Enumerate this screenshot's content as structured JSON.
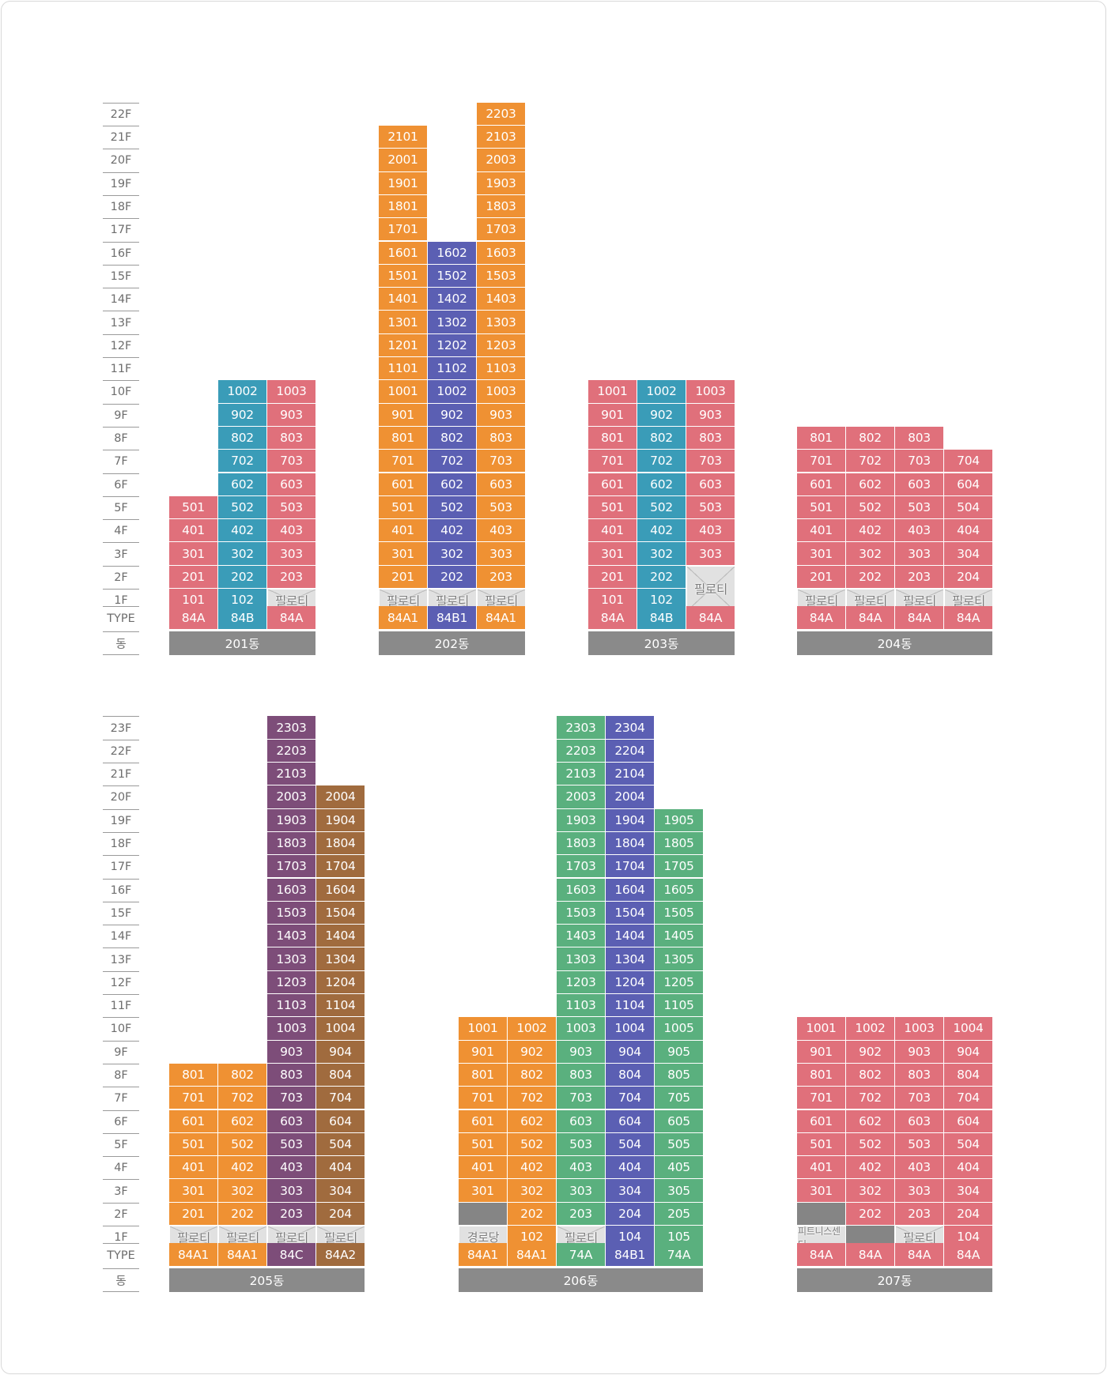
{
  "colors": {
    "pink": "#e0707b",
    "teal": "#3a9cb8",
    "orange": "#ef9133",
    "indigo": "#5b5fb3",
    "plum": "#7d4d79",
    "brown": "#a06b3e",
    "green": "#5ab07e",
    "grey": "#8a8a8a",
    "gap": "#858585",
    "pil": "#e1e1e1"
  },
  "labels": {
    "type_row": "TYPE",
    "dong_row": "동"
  },
  "sections": [
    {
      "id": "top",
      "floors": [
        "1F",
        "2F",
        "3F",
        "4F",
        "5F",
        "6F",
        "7F",
        "8F",
        "9F",
        "10F",
        "11F",
        "12F",
        "13F",
        "14F",
        "15F",
        "16F",
        "17F",
        "18F",
        "19F",
        "20F",
        "21F",
        "22F"
      ],
      "buildings": [
        {
          "name": "201동",
          "columns": [
            {
              "type": "84A",
              "color": "pink",
              "cells": [
                "101",
                "201",
                "301",
                "401",
                "501"
              ]
            },
            {
              "type": "84B",
              "color": "teal",
              "cells": [
                "102",
                "202",
                "302",
                "402",
                "502",
                "602",
                "702",
                "802",
                "902",
                "1002"
              ]
            },
            {
              "type": "84A",
              "color": "pink",
              "cells": [
                "필로티",
                "203",
                "303",
                "403",
                "503",
                "603",
                "703",
                "803",
                "903",
                "1003"
              ]
            }
          ]
        },
        {
          "name": "202동",
          "columns": [
            {
              "type": "84A1",
              "color": "orange",
              "cells": [
                "필로티",
                "201",
                "301",
                "401",
                "501",
                "601",
                "701",
                "801",
                "901",
                "1001",
                "1101",
                "1201",
                "1301",
                "1401",
                "1501",
                "1601",
                "1701",
                "1801",
                "1901",
                "2001",
                "2101"
              ]
            },
            {
              "type": "84B1",
              "color": "indigo",
              "cells": [
                "필로티",
                "202",
                "302",
                "402",
                "502",
                "602",
                "702",
                "802",
                "902",
                "1002",
                "1102",
                "1202",
                "1302",
                "1402",
                "1502",
                "1602"
              ]
            },
            {
              "type": "84A1",
              "color": "orange",
              "cells": [
                "필로티",
                "203",
                "303",
                "403",
                "503",
                "603",
                "703",
                "803",
                "903",
                "1003",
                "1103",
                "1203",
                "1303",
                "1403",
                "1503",
                "1603",
                "1703",
                "1803",
                "1903",
                "2003",
                "2103",
                "2203"
              ]
            }
          ]
        },
        {
          "name": "203동",
          "columns": [
            {
              "type": "84A",
              "color": "pink",
              "cells": [
                "101",
                "201",
                "301",
                "401",
                "501",
                "601",
                "701",
                "801",
                "901",
                "1001"
              ]
            },
            {
              "type": "84B",
              "color": "teal",
              "cells": [
                "102",
                "202",
                "302",
                "402",
                "502",
                "602",
                "702",
                "802",
                "902",
                "1002"
              ]
            },
            {
              "type": "84A",
              "color": "pink",
              "cells": [
                "필로티",
                "",
                "303",
                "403",
                "503",
                "603",
                "703",
                "803",
                "903",
                "1003"
              ],
              "merge_bottom": 2
            }
          ]
        },
        {
          "name": "204동",
          "columns": [
            {
              "type": "84A",
              "color": "pink",
              "cells": [
                "필로티",
                "201",
                "301",
                "401",
                "501",
                "601",
                "701",
                "801"
              ]
            },
            {
              "type": "84A",
              "color": "pink",
              "cells": [
                "필로티",
                "202",
                "302",
                "402",
                "502",
                "602",
                "702",
                "802"
              ]
            },
            {
              "type": "84A",
              "color": "pink",
              "cells": [
                "필로티",
                "203",
                "303",
                "403",
                "503",
                "603",
                "703",
                "803"
              ]
            },
            {
              "type": "84A",
              "color": "pink",
              "cells": [
                "필로티",
                "204",
                "304",
                "404",
                "504",
                "604",
                "704"
              ]
            }
          ]
        }
      ]
    },
    {
      "id": "bottom",
      "floors": [
        "1F",
        "2F",
        "3F",
        "4F",
        "5F",
        "6F",
        "7F",
        "8F",
        "9F",
        "10F",
        "11F",
        "12F",
        "13F",
        "14F",
        "15F",
        "16F",
        "17F",
        "18F",
        "19F",
        "20F",
        "21F",
        "22F",
        "23F"
      ],
      "buildings": [
        {
          "name": "205동",
          "columns": [
            {
              "type": "84A1",
              "color": "orange",
              "cells": [
                "필로티",
                "201",
                "301",
                "401",
                "501",
                "601",
                "701",
                "801"
              ]
            },
            {
              "type": "84A1",
              "color": "orange",
              "cells": [
                "필로티",
                "202",
                "302",
                "402",
                "502",
                "602",
                "702",
                "802"
              ]
            },
            {
              "type": "84C",
              "color": "plum",
              "cells": [
                "필로티",
                "203",
                "303",
                "403",
                "503",
                "603",
                "703",
                "803",
                "903",
                "1003",
                "1103",
                "1203",
                "1303",
                "1403",
                "1503",
                "1603",
                "1703",
                "1803",
                "1903",
                "2003",
                "2103",
                "2203",
                "2303"
              ]
            },
            {
              "type": "84A2",
              "color": "brown",
              "cells": [
                "필로티",
                "204",
                "304",
                "404",
                "504",
                "604",
                "704",
                "804",
                "904",
                "1004",
                "1104",
                "1204",
                "1304",
                "1404",
                "1504",
                "1604",
                "1704",
                "1804",
                "1904",
                "2004"
              ]
            }
          ]
        },
        {
          "name": "206동",
          "columns": [
            {
              "type": "84A1",
              "color": "orange",
              "cells": [
                "경로당",
                "#gap",
                "301",
                "401",
                "501",
                "601",
                "701",
                "801",
                "901",
                "1001"
              ]
            },
            {
              "type": "84A1",
              "color": "orange",
              "cells": [
                "102",
                "202",
                "302",
                "402",
                "502",
                "602",
                "702",
                "802",
                "902",
                "1002"
              ]
            },
            {
              "type": "74A",
              "color": "green",
              "cells": [
                "필로티",
                "203",
                "303",
                "403",
                "503",
                "603",
                "703",
                "803",
                "903",
                "1003",
                "1103",
                "1203",
                "1303",
                "1403",
                "1503",
                "1603",
                "1703",
                "1803",
                "1903",
                "2003",
                "2103",
                "2203",
                "2303"
              ]
            },
            {
              "type": "84B1",
              "color": "indigo",
              "cells": [
                "104",
                "204",
                "304",
                "404",
                "504",
                "604",
                "704",
                "804",
                "904",
                "1004",
                "1104",
                "1204",
                "1304",
                "1404",
                "1504",
                "1604",
                "1704",
                "1804",
                "1904",
                "2004",
                "2104",
                "2204",
                "2304"
              ]
            },
            {
              "type": "74A",
              "color": "green",
              "cells": [
                "105",
                "205",
                "305",
                "405",
                "505",
                "605",
                "705",
                "805",
                "905",
                "1005",
                "1105",
                "1205",
                "1305",
                "1405",
                "1505",
                "1605",
                "1705",
                "1805",
                "1905"
              ]
            }
          ]
        },
        {
          "name": "207동",
          "columns": [
            {
              "type": "84A",
              "color": "pink",
              "cells": [
                "피트니스센터",
                "#gap",
                "301",
                "401",
                "501",
                "601",
                "701",
                "801",
                "901",
                "1001"
              ]
            },
            {
              "type": "84A",
              "color": "pink",
              "cells": [
                "#gap",
                "202",
                "302",
                "402",
                "502",
                "602",
                "702",
                "802",
                "902",
                "1002"
              ]
            },
            {
              "type": "84A",
              "color": "pink",
              "cells": [
                "필로티",
                "203",
                "303",
                "403",
                "503",
                "603",
                "703",
                "803",
                "903",
                "1003"
              ]
            },
            {
              "type": "84A",
              "color": "pink",
              "cells": [
                "104",
                "204",
                "304",
                "404",
                "504",
                "604",
                "704",
                "804",
                "904",
                "1004"
              ]
            }
          ]
        }
      ]
    }
  ]
}
